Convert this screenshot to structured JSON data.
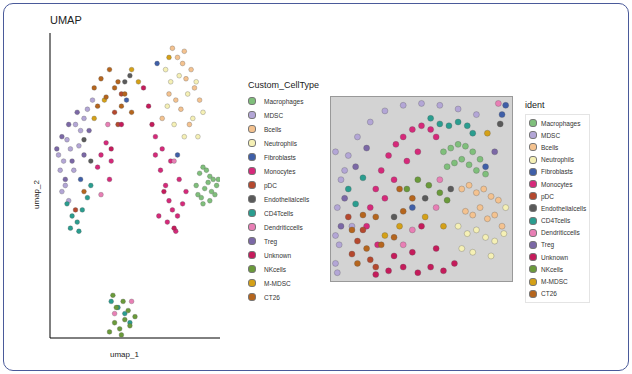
{
  "chart_data": [
    {
      "type": "scatter",
      "title": "UMAP",
      "x_label": "umap_1",
      "y_label": "umap_2",
      "legend_title": "Custom_CellType",
      "legend": "right",
      "tick_labels": false,
      "xlim": [
        0,
        100
      ],
      "ylim": [
        0,
        100
      ],
      "series": [
        {
          "name": "Macrophages",
          "color": "#7fbf7b",
          "x": [
            86,
            88,
            90,
            92,
            94,
            96,
            98,
            87,
            89,
            91,
            93,
            95,
            97,
            99,
            90,
            94
          ],
          "values": [
            50,
            54,
            56,
            55,
            53,
            52,
            50,
            47,
            46,
            49,
            51,
            48,
            47,
            52,
            44,
            45
          ]
        },
        {
          "name": "MDSC",
          "color": "#b3a6d6",
          "x": [
            5,
            8,
            10,
            12,
            15,
            18,
            20,
            6,
            9,
            14,
            17,
            22,
            25,
            11,
            7
          ],
          "values": [
            60,
            58,
            65,
            62,
            70,
            68,
            72,
            55,
            50,
            55,
            63,
            75,
            78,
            45,
            48
          ]
        },
        {
          "name": "Bcells",
          "color": "#f4c28f",
          "x": [
            72,
            75,
            78,
            80,
            83,
            70,
            74,
            77,
            85,
            88,
            66,
            82,
            79
          ],
          "values": [
            95,
            92,
            90,
            85,
            88,
            80,
            78,
            75,
            82,
            78,
            72,
            70,
            94
          ]
        },
        {
          "name": "Neutrophils",
          "color": "#f5f0b5",
          "x": [
            68,
            71,
            76,
            81,
            86,
            90,
            73,
            79,
            84,
            69,
            87
          ],
          "values": [
            88,
            84,
            86,
            80,
            84,
            74,
            70,
            66,
            72,
            76,
            66
          ]
        },
        {
          "name": "Fibroblasts",
          "color": "#3f5fa8",
          "x": [
            63,
            18,
            45,
            75
          ],
          "values": [
            90,
            52,
            78,
            60
          ]
        },
        {
          "name": "Monocytes",
          "color": "#d6297a",
          "x": [
            62,
            65,
            68,
            70,
            72,
            75,
            78,
            80,
            66,
            71,
            76,
            64,
            69,
            74,
            30,
            33,
            36,
            28,
            35,
            62
          ],
          "values": [
            60,
            55,
            50,
            45,
            42,
            40,
            44,
            48,
            62,
            58,
            52,
            40,
            38,
            35,
            60,
            64,
            58,
            56,
            52,
            66
          ]
        },
        {
          "name": "pDC",
          "color": "#b5482e",
          "x": [
            38,
            40,
            15,
            42
          ],
          "values": [
            74,
            70,
            42,
            80
          ]
        },
        {
          "name": "Endothelialcells",
          "color": "#5a5a5a",
          "x": [
            20,
            24,
            44,
            47
          ],
          "values": [
            65,
            58,
            84,
            86
          ]
        },
        {
          "name": "CD4Tcells",
          "color": "#2a9d8f",
          "x": [
            10,
            13,
            16,
            19,
            22,
            12,
            17,
            40,
            44,
            47,
            36,
            24
          ],
          "values": [
            44,
            40,
            38,
            42,
            46,
            36,
            35,
            10,
            8,
            5,
            12,
            50
          ]
        },
        {
          "name": "Dendriticcells",
          "color": "#e87fb5",
          "x": [
            34,
            30,
            38,
            48,
            73
          ],
          "values": [
            70,
            47,
            8,
            12,
            58
          ]
        },
        {
          "name": "Treg",
          "color": "#7b68a6",
          "x": [
            4,
            7,
            11,
            13,
            16,
            20,
            9,
            23
          ],
          "values": [
            62,
            66,
            70,
            58,
            74,
            60,
            52,
            68
          ]
        },
        {
          "name": "Unknown",
          "color": "#c51b5b",
          "x": [
            55,
            58,
            67,
            73,
            42,
            36,
            60
          ],
          "values": [
            82,
            76,
            48,
            36,
            70,
            62,
            70
          ]
        },
        {
          "name": "NKcells",
          "color": "#6a9a3a",
          "x": [
            35,
            38,
            41,
            44,
            47,
            50,
            39,
            43,
            46,
            37,
            42
          ],
          "values": [
            2,
            5,
            3,
            6,
            4,
            7,
            10,
            12,
            9,
            14,
            1
          ]
        },
        {
          "name": "M-MDSC",
          "color": "#d4a017",
          "x": [
            26,
            32,
            48,
            52,
            70
          ],
          "values": [
            72,
            78,
            88,
            84,
            92
          ]
        },
        {
          "name": "CT26",
          "color": "#b5651d",
          "x": [
            26,
            30,
            35,
            40,
            44,
            28,
            33,
            38,
            42,
            20,
            48
          ],
          "values": [
            82,
            85,
            88,
            84,
            80,
            76,
            79,
            82,
            76,
            48,
            74
          ]
        }
      ]
    },
    {
      "type": "scatter",
      "legend_title": "ident",
      "legend": "right",
      "tick_labels": false,
      "xlim": [
        0,
        100
      ],
      "ylim": [
        0,
        100
      ],
      "series": [
        {
          "name": "Macrophages",
          "color": "#7fbf7b",
          "x": [
            62,
            66,
            70,
            74,
            78,
            82,
            64,
            68,
            72,
            76,
            80,
            85
          ],
          "values": [
            70,
            72,
            74,
            73,
            70,
            66,
            62,
            64,
            66,
            63,
            60,
            58
          ]
        },
        {
          "name": "MDSC",
          "color": "#b3a6d6",
          "x": [
            3,
            3,
            4,
            6,
            10,
            15,
            22,
            30,
            40,
            50,
            60,
            70,
            80,
            5,
            8,
            12,
            3,
            4
          ],
          "values": [
            10,
            25,
            40,
            55,
            68,
            78,
            86,
            92,
            95,
            96,
            95,
            93,
            90,
            20,
            60,
            30,
            70,
            5
          ]
        },
        {
          "name": "Bcells",
          "color": "#f4c28f",
          "x": [
            72,
            76,
            80,
            84,
            88,
            92,
            74,
            78,
            82,
            86,
            90,
            94
          ],
          "values": [
            50,
            52,
            48,
            50,
            46,
            44,
            38,
            36,
            40,
            34,
            36,
            30
          ]
        },
        {
          "name": "Neutrophils",
          "color": "#f5f0b5",
          "x": [
            70,
            75,
            80,
            85,
            90,
            95,
            72,
            78,
            88,
            96
          ],
          "values": [
            30,
            26,
            28,
            24,
            22,
            26,
            18,
            16,
            14,
            40
          ]
        },
        {
          "name": "Fibroblasts",
          "color": "#3f5fa8",
          "x": [
            45,
            85,
            94,
            96
          ],
          "values": [
            40,
            62,
            90,
            95
          ]
        },
        {
          "name": "Monocytes",
          "color": "#d6297a",
          "x": [
            20,
            22,
            25,
            28,
            32,
            36,
            40,
            45,
            50,
            55,
            58,
            30,
            35,
            42,
            26,
            48
          ],
          "values": [
            30,
            40,
            50,
            60,
            68,
            74,
            78,
            82,
            84,
            82,
            78,
            45,
            55,
            65,
            20,
            70
          ]
        },
        {
          "name": "pDC",
          "color": "#b5482e",
          "x": [
            12,
            15,
            18,
            10,
            22,
            25
          ],
          "values": [
            15,
            22,
            28,
            35,
            12,
            8
          ]
        },
        {
          "name": "Endothelialcells",
          "color": "#5a5a5a",
          "x": [
            35,
            52,
            66,
            93
          ],
          "values": [
            35,
            45,
            50,
            85
          ]
        },
        {
          "name": "CD4Tcells",
          "color": "#2a9d8f",
          "x": [
            55,
            60,
            65,
            70,
            75,
            78,
            10,
            14,
            18
          ],
          "values": [
            88,
            85,
            84,
            86,
            84,
            80,
            50,
            42,
            56
          ]
        },
        {
          "name": "Dendriticcells",
          "color": "#e87fb5",
          "x": [
            40,
            45,
            58,
            60,
            92
          ],
          "values": [
            20,
            28,
            40,
            55,
            96
          ]
        },
        {
          "name": "Treg",
          "color": "#7b68a6",
          "x": [
            8,
            14,
            20,
            6,
            90
          ],
          "values": [
            45,
            62,
            72,
            30,
            70
          ]
        },
        {
          "name": "Unknown",
          "color": "#c51b5b",
          "x": [
            25,
            32,
            40,
            48,
            55,
            62,
            68,
            35,
            45,
            58,
            50
          ],
          "values": [
            4,
            6,
            8,
            5,
            8,
            6,
            10,
            14,
            16,
            18,
            30
          ]
        },
        {
          "name": "NKcells",
          "color": "#6a9a3a",
          "x": [
            42,
            48,
            54,
            60,
            64
          ],
          "values": [
            50,
            55,
            52,
            48,
            44
          ]
        },
        {
          "name": "M-MDSC",
          "color": "#d4a017",
          "x": [
            30,
            38,
            52,
            62,
            86
          ],
          "values": [
            25,
            30,
            35,
            30,
            80
          ]
        },
        {
          "name": "CT26",
          "color": "#b5651d",
          "x": [
            15,
            20,
            28,
            35,
            40,
            45,
            12,
            18,
            25,
            38
          ],
          "values": [
            10,
            18,
            20,
            24,
            38,
            45,
            28,
            36,
            35,
            50
          ]
        }
      ]
    }
  ]
}
